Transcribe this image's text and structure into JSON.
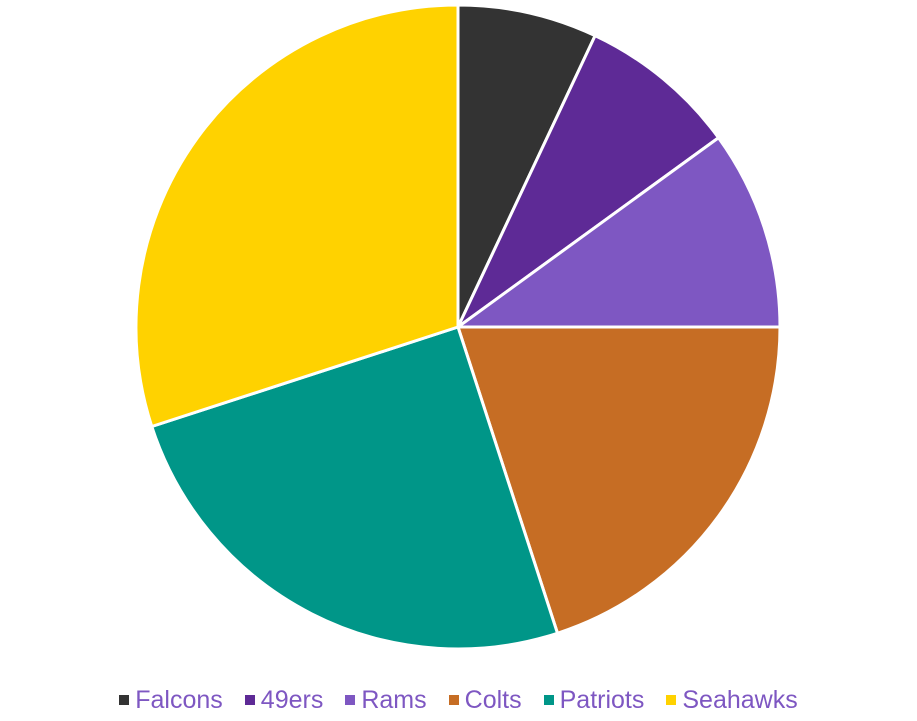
{
  "chart_data": {
    "type": "pie",
    "categories": [
      "Falcons",
      "49ers",
      "Rams",
      "Colts",
      "Patriots",
      "Seahawks"
    ],
    "values": [
      7,
      8,
      10,
      20,
      25,
      30
    ],
    "colors": [
      "#333333",
      "#5e2a96",
      "#7e57c2",
      "#c66d24",
      "#009688",
      "#ffd200"
    ],
    "start_angle": "12 o'clock",
    "direction": "clockwise",
    "legend": {
      "position": "bottom",
      "text_color": "#7e57c2"
    }
  }
}
